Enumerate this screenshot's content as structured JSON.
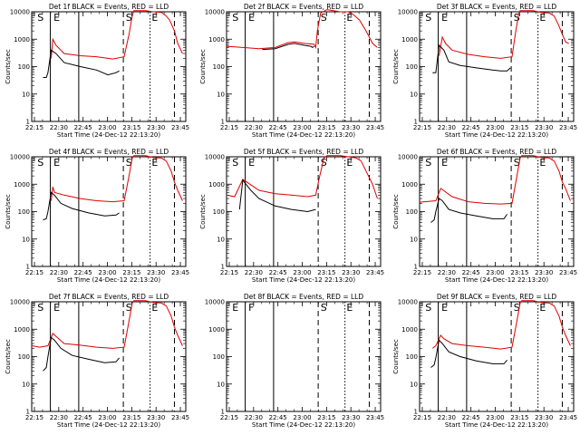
{
  "chart_data": [
    {
      "type": "line",
      "title": "Det 1f BLACK = Events, RED = LLD",
      "xlabel": "Start Time (24-Dec-12 22:13:20)",
      "ylabel": "Counts/sec",
      "x_tick_labels": [
        "22:15",
        "22:30",
        "22:45",
        "23:00",
        "23:15",
        "23:30",
        "23:45"
      ],
      "y_tick_labels": [
        "1",
        "10",
        "100",
        "1000",
        "10000"
      ],
      "yscale": "log",
      "ylim": [
        1,
        10000
      ],
      "xlim_minutes": [
        0,
        95
      ],
      "markers": [
        "S",
        "E",
        "S",
        "E"
      ],
      "has_red": true,
      "has_black": true,
      "red_points": [
        [
          12,
          200
        ],
        [
          13,
          1000
        ],
        [
          15,
          600
        ],
        [
          20,
          300
        ],
        [
          30,
          250
        ],
        [
          40,
          230
        ],
        [
          50,
          190
        ],
        [
          57,
          230
        ],
        [
          60,
          1500
        ],
        [
          62,
          7000
        ],
        [
          63,
          11000
        ],
        [
          70,
          11000
        ],
        [
          75,
          10000
        ],
        [
          80,
          9500
        ],
        [
          83,
          7000
        ],
        [
          85,
          5000
        ],
        [
          88,
          2000
        ],
        [
          90,
          700
        ],
        [
          92,
          400
        ],
        [
          93,
          300
        ]
      ],
      "black_points": [
        [
          7,
          40
        ],
        [
          9,
          40
        ],
        [
          10,
          60
        ],
        [
          12,
          400
        ],
        [
          15,
          300
        ],
        [
          20,
          140
        ],
        [
          30,
          100
        ],
        [
          40,
          75
        ],
        [
          47,
          50
        ],
        [
          52,
          60
        ],
        [
          54,
          70
        ]
      ]
    },
    {
      "type": "line",
      "title": "Det 2f BLACK = Events, RED = LLD",
      "xlabel": "Start Time (24-Dec-12 22:13:20)",
      "ylabel": "Counts/sec",
      "x_tick_labels": [
        "22:15",
        "22:30",
        "22:45",
        "23:00",
        "23:15",
        "23:30",
        "23:45"
      ],
      "y_tick_labels": [
        "1",
        "10",
        "100",
        "1000",
        "10000"
      ],
      "yscale": "log",
      "ylim": [
        1,
        10000
      ],
      "xlim_minutes": [
        0,
        95
      ],
      "markers": [
        "S",
        "E",
        "S",
        "E"
      ],
      "has_red": true,
      "has_black": true,
      "red_points": [
        [
          0,
          550
        ],
        [
          10,
          500
        ],
        [
          20,
          450
        ],
        [
          30,
          500
        ],
        [
          38,
          750
        ],
        [
          42,
          800
        ],
        [
          48,
          700
        ],
        [
          54,
          650
        ],
        [
          55,
          500
        ],
        [
          56,
          2000
        ],
        [
          58,
          9000
        ],
        [
          62,
          12000
        ],
        [
          70,
          10000
        ],
        [
          75,
          10000
        ],
        [
          78,
          8000
        ],
        [
          82,
          5000
        ],
        [
          86,
          2000
        ],
        [
          90,
          700
        ],
        [
          93,
          500
        ]
      ],
      "black_points": [
        [
          22,
          420
        ],
        [
          30,
          450
        ],
        [
          38,
          650
        ],
        [
          42,
          700
        ],
        [
          48,
          600
        ],
        [
          52,
          550
        ],
        [
          53,
          500
        ],
        [
          54,
          550
        ]
      ]
    },
    {
      "type": "line",
      "title": "Det 3f BLACK = Events, RED = LLD",
      "xlabel": "Start Time (24-Dec-12 22:13:20)",
      "ylabel": "Counts/sec",
      "x_tick_labels": [
        "22:15",
        "22:30",
        "22:45",
        "23:00",
        "23:15",
        "23:30",
        "23:45"
      ],
      "y_tick_labels": [
        "1",
        "10",
        "100",
        "1000",
        "10000"
      ],
      "yscale": "log",
      "ylim": [
        1,
        10000
      ],
      "xlim_minutes": [
        0,
        95
      ],
      "markers": [
        "S",
        "E",
        "S",
        "E"
      ],
      "has_red": true,
      "has_black": true,
      "red_points": [
        [
          12,
          250
        ],
        [
          14,
          1200
        ],
        [
          16,
          700
        ],
        [
          20,
          400
        ],
        [
          30,
          280
        ],
        [
          40,
          230
        ],
        [
          50,
          200
        ],
        [
          57,
          230
        ],
        [
          59,
          1500
        ],
        [
          61,
          8000
        ],
        [
          62,
          11000
        ],
        [
          70,
          11000
        ],
        [
          75,
          9500
        ],
        [
          80,
          9000
        ],
        [
          83,
          7000
        ],
        [
          86,
          3000
        ],
        [
          88,
          1500
        ],
        [
          90,
          800
        ],
        [
          92,
          700
        ]
      ],
      "black_points": [
        [
          8,
          60
        ],
        [
          10,
          60
        ],
        [
          12,
          600
        ],
        [
          15,
          400
        ],
        [
          18,
          150
        ],
        [
          25,
          110
        ],
        [
          35,
          90
        ],
        [
          45,
          75
        ],
        [
          50,
          70
        ],
        [
          54,
          70
        ],
        [
          56,
          90
        ]
      ]
    },
    {
      "type": "line",
      "title": "Det 4f BLACK = Events, RED = LLD",
      "xlabel": "Start Time (24-Dec-12 22:13:20)",
      "ylabel": "Counts/sec",
      "x_tick_labels": [
        "22:15",
        "22:30",
        "22:45",
        "23:00",
        "23:15",
        "23:30",
        "23:45"
      ],
      "y_tick_labels": [
        "1",
        "10",
        "100",
        "1000",
        "10000"
      ],
      "yscale": "log",
      "ylim": [
        1,
        10000
      ],
      "xlim_minutes": [
        0,
        95
      ],
      "markers": [
        "S",
        "E",
        "S",
        "E"
      ],
      "has_red": true,
      "has_black": true,
      "red_points": [
        [
          12,
          250
        ],
        [
          13,
          800
        ],
        [
          14,
          500
        ],
        [
          20,
          400
        ],
        [
          30,
          300
        ],
        [
          40,
          250
        ],
        [
          50,
          230
        ],
        [
          57,
          250
        ],
        [
          60,
          2000
        ],
        [
          62,
          9000
        ],
        [
          63,
          11000
        ],
        [
          70,
          11000
        ],
        [
          75,
          9500
        ],
        [
          80,
          9000
        ],
        [
          83,
          7000
        ],
        [
          86,
          3000
        ],
        [
          88,
          1200
        ],
        [
          90,
          600
        ],
        [
          93,
          250
        ]
      ],
      "black_points": [
        [
          7,
          50
        ],
        [
          9,
          55
        ],
        [
          10,
          100
        ],
        [
          12,
          500
        ],
        [
          14,
          400
        ],
        [
          18,
          200
        ],
        [
          25,
          130
        ],
        [
          35,
          90
        ],
        [
          45,
          70
        ],
        [
          52,
          75
        ],
        [
          54,
          90
        ]
      ]
    },
    {
      "type": "line",
      "title": "Det 5f BLACK = Events, RED = LLD",
      "xlabel": "Start Time (24-Dec-12 22:13:20)",
      "ylabel": "Counts/sec",
      "x_tick_labels": [
        "22:15",
        "22:30",
        "22:45",
        "23:00",
        "23:15",
        "23:30",
        "23:45"
      ],
      "y_tick_labels": [
        "1",
        "10",
        "100",
        "1000",
        "10000"
      ],
      "yscale": "log",
      "ylim": [
        1,
        10000
      ],
      "xlim_minutes": [
        0,
        95
      ],
      "markers": [
        "S",
        "E",
        "S",
        "E"
      ],
      "has_red": true,
      "has_black": true,
      "red_points": [
        [
          0,
          400
        ],
        [
          5,
          350
        ],
        [
          10,
          1500
        ],
        [
          20,
          600
        ],
        [
          30,
          450
        ],
        [
          40,
          400
        ],
        [
          50,
          350
        ],
        [
          55,
          400
        ],
        [
          57,
          1500
        ],
        [
          60,
          9000
        ],
        [
          62,
          11000
        ],
        [
          70,
          11000
        ],
        [
          75,
          10000
        ],
        [
          80,
          9000
        ],
        [
          83,
          7000
        ],
        [
          86,
          3000
        ],
        [
          90,
          1000
        ],
        [
          93,
          300
        ]
      ],
      "black_points": [
        [
          8,
          120
        ],
        [
          10,
          1400
        ],
        [
          15,
          600
        ],
        [
          20,
          300
        ],
        [
          30,
          160
        ],
        [
          40,
          120
        ],
        [
          50,
          100
        ],
        [
          55,
          120
        ]
      ]
    },
    {
      "type": "line",
      "title": "Det 6f BLACK = Events, RED = LLD",
      "xlabel": "Start Time (24-Dec-12 22:13:20)",
      "ylabel": "Counts/sec",
      "x_tick_labels": [
        "22:15",
        "22:30",
        "22:45",
        "23:00",
        "23:15",
        "23:30",
        "23:45"
      ],
      "y_tick_labels": [
        "1",
        "10",
        "100",
        "1000",
        "10000"
      ],
      "yscale": "log",
      "ylim": [
        1,
        10000
      ],
      "xlim_minutes": [
        0,
        95
      ],
      "markers": [
        "S",
        "E",
        "S",
        "E"
      ],
      "has_red": true,
      "has_black": true,
      "red_points": [
        [
          0,
          220
        ],
        [
          10,
          250
        ],
        [
          13,
          700
        ],
        [
          20,
          350
        ],
        [
          30,
          230
        ],
        [
          40,
          200
        ],
        [
          50,
          190
        ],
        [
          57,
          200
        ],
        [
          60,
          2000
        ],
        [
          62,
          9000
        ],
        [
          63,
          11000
        ],
        [
          70,
          11000
        ],
        [
          75,
          9500
        ],
        [
          80,
          9000
        ],
        [
          83,
          7000
        ],
        [
          86,
          3000
        ],
        [
          88,
          1200
        ],
        [
          90,
          700
        ],
        [
          93,
          250
        ]
      ],
      "black_points": [
        [
          7,
          40
        ],
        [
          9,
          50
        ],
        [
          10,
          100
        ],
        [
          12,
          300
        ],
        [
          14,
          250
        ],
        [
          18,
          120
        ],
        [
          25,
          90
        ],
        [
          35,
          70
        ],
        [
          45,
          55
        ],
        [
          52,
          55
        ],
        [
          54,
          80
        ]
      ]
    },
    {
      "type": "line",
      "title": "Det 7f BLACK = Events, RED = LLD",
      "xlabel": "Start Time (24-Dec-12 22:13:20)",
      "ylabel": "Counts/sec",
      "x_tick_labels": [
        "22:15",
        "22:30",
        "22:45",
        "23:00",
        "23:15",
        "23:30",
        "23:45"
      ],
      "y_tick_labels": [
        "1",
        "10",
        "100",
        "1000",
        "10000"
      ],
      "yscale": "log",
      "ylim": [
        1,
        10000
      ],
      "xlim_minutes": [
        0,
        95
      ],
      "markers": [
        "S",
        "E",
        "S",
        "E"
      ],
      "has_red": true,
      "has_black": true,
      "red_points": [
        [
          0,
          250
        ],
        [
          5,
          220
        ],
        [
          10,
          250
        ],
        [
          13,
          700
        ],
        [
          15,
          550
        ],
        [
          20,
          300
        ],
        [
          30,
          260
        ],
        [
          40,
          220
        ],
        [
          50,
          200
        ],
        [
          57,
          220
        ],
        [
          60,
          2000
        ],
        [
          62,
          9000
        ],
        [
          63,
          11000
        ],
        [
          70,
          11000
        ],
        [
          75,
          9500
        ],
        [
          80,
          9000
        ],
        [
          83,
          7000
        ],
        [
          86,
          3000
        ],
        [
          88,
          1200
        ],
        [
          90,
          600
        ],
        [
          93,
          250
        ]
      ],
      "black_points": [
        [
          7,
          30
        ],
        [
          9,
          40
        ],
        [
          10,
          100
        ],
        [
          12,
          500
        ],
        [
          14,
          400
        ],
        [
          18,
          200
        ],
        [
          25,
          110
        ],
        [
          35,
          80
        ],
        [
          45,
          60
        ],
        [
          52,
          65
        ],
        [
          54,
          90
        ]
      ]
    },
    {
      "type": "line",
      "title": "Det 8f BLACK = Events, RED = LLD",
      "xlabel": "Start Time (24-Dec-12 22:13:20)",
      "ylabel": "",
      "x_tick_labels": [
        "22:15",
        "22:30",
        "22:45",
        "23:00",
        "23:15",
        "23:30",
        "23:45"
      ],
      "y_tick_labels": [
        "1",
        "10",
        "100",
        "1000",
        "10000"
      ],
      "yscale": "log",
      "ylim": [
        1,
        10000
      ],
      "xlim_minutes": [
        0,
        95
      ],
      "markers": [
        "E",
        "F",
        "S",
        "E"
      ],
      "has_red": false,
      "has_black": false,
      "red_points": [],
      "black_points": []
    },
    {
      "type": "line",
      "title": "Det 9f BLACK = Events, RED = LLD",
      "xlabel": "Start Time (24-Dec-12 22:13:20)",
      "ylabel": "Counts/sec",
      "x_tick_labels": [
        "22:15",
        "22:30",
        "22:45",
        "23:00",
        "23:15",
        "23:30",
        "23:45"
      ],
      "y_tick_labels": [
        "1",
        "10",
        "100",
        "1000",
        "10000"
      ],
      "yscale": "log",
      "ylim": [
        1,
        10000
      ],
      "xlim_minutes": [
        0,
        95
      ],
      "markers": [
        "S",
        "E",
        "S",
        "E"
      ],
      "has_red": true,
      "has_black": true,
      "red_points": [
        [
          8,
          200
        ],
        [
          10,
          250
        ],
        [
          13,
          600
        ],
        [
          15,
          450
        ],
        [
          20,
          300
        ],
        [
          30,
          250
        ],
        [
          40,
          220
        ],
        [
          50,
          190
        ],
        [
          57,
          220
        ],
        [
          60,
          2000
        ],
        [
          62,
          9000
        ],
        [
          63,
          11000
        ],
        [
          70,
          11000
        ],
        [
          75,
          9500
        ],
        [
          80,
          9000
        ],
        [
          83,
          7000
        ],
        [
          86,
          3000
        ],
        [
          88,
          1200
        ],
        [
          90,
          600
        ],
        [
          93,
          250
        ]
      ],
      "black_points": [
        [
          7,
          40
        ],
        [
          9,
          50
        ],
        [
          10,
          90
        ],
        [
          12,
          400
        ],
        [
          14,
          300
        ],
        [
          18,
          150
        ],
        [
          25,
          100
        ],
        [
          35,
          70
        ],
        [
          45,
          55
        ],
        [
          52,
          55
        ],
        [
          54,
          75
        ]
      ]
    }
  ]
}
